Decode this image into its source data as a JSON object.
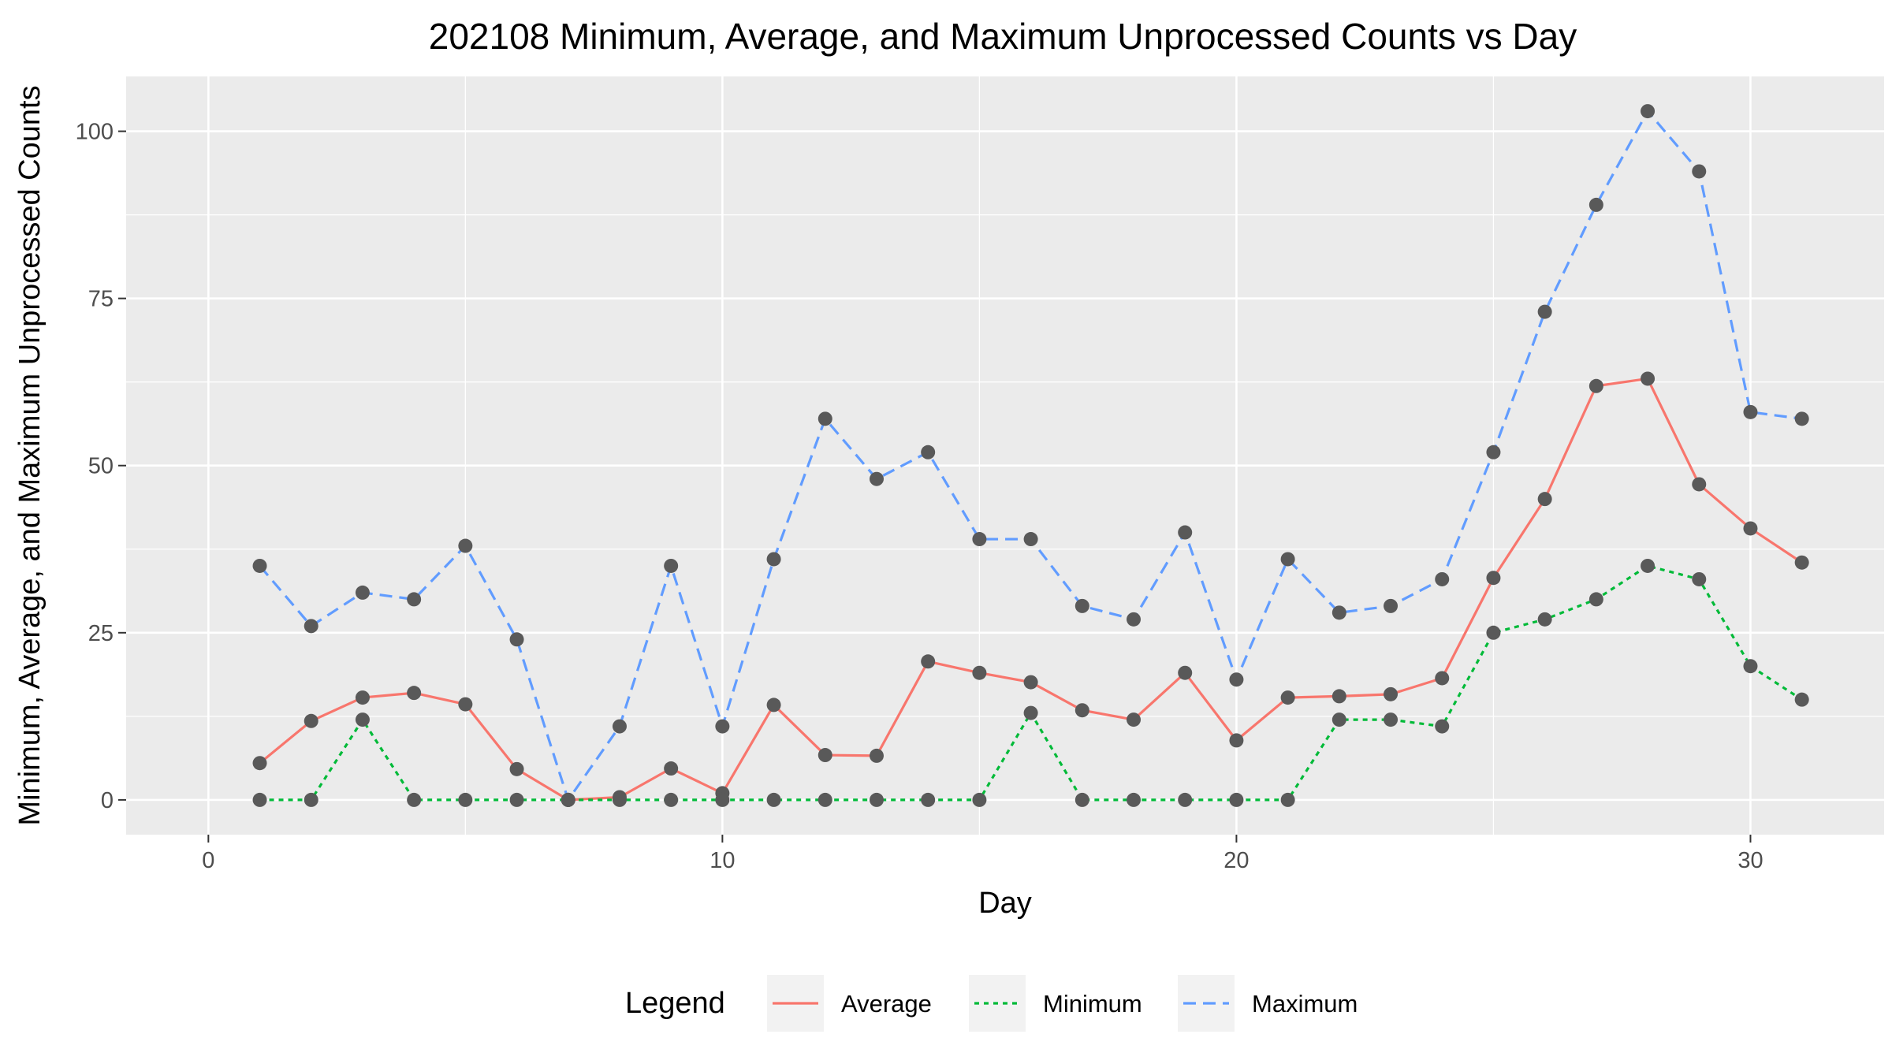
{
  "chart_data": {
    "type": "line",
    "title": "202108 Minimum, Average, and Maximum Unprocessed Counts vs Day",
    "xlabel": "Day",
    "ylabel": "Minimum, Average, and Maximum Unprocessed Counts",
    "xlim": [
      -1.6,
      32.6
    ],
    "ylim": [
      -5.2,
      108.2
    ],
    "x_ticks": [
      0,
      10,
      20,
      30
    ],
    "y_ticks": [
      0,
      25,
      50,
      75,
      100
    ],
    "grid": true,
    "legend": {
      "title": "Legend",
      "position": "bottom"
    },
    "x": [
      1,
      2,
      3,
      4,
      5,
      6,
      7,
      8,
      9,
      10,
      11,
      12,
      13,
      14,
      15,
      16,
      17,
      18,
      19,
      20,
      21,
      22,
      23,
      24,
      25,
      26,
      27,
      28,
      29,
      30,
      31
    ],
    "series": [
      {
        "name": "Average",
        "color": "#F8766D",
        "dash": "solid",
        "values": [
          5.5,
          11.8,
          15.3,
          16,
          14.3,
          4.6,
          0,
          0.4,
          4.7,
          1,
          14.2,
          6.7,
          6.6,
          20.7,
          19,
          17.6,
          13.4,
          12,
          19,
          8.9,
          15.3,
          15.5,
          15.8,
          18.2,
          33.2,
          45,
          61.9,
          63,
          47.2,
          40.6,
          35.5
        ]
      },
      {
        "name": "Minimum",
        "color": "#00BA38",
        "dash": "dotted",
        "values": [
          0,
          0,
          12,
          0,
          0,
          0,
          0,
          0,
          0,
          0,
          0,
          0,
          0,
          0,
          0,
          13,
          0,
          0,
          0,
          0,
          0,
          12,
          12,
          11,
          25,
          27,
          30,
          35,
          33,
          20,
          15
        ]
      },
      {
        "name": "Maximum",
        "color": "#619CFF",
        "dash": "dashed",
        "values": [
          35,
          26,
          31,
          30,
          38,
          24,
          0,
          11,
          35,
          11,
          36,
          57,
          48,
          52,
          39,
          39,
          29,
          27,
          40,
          18,
          36,
          28,
          29,
          33,
          52,
          73,
          89,
          103,
          94,
          58,
          57
        ]
      }
    ]
  }
}
